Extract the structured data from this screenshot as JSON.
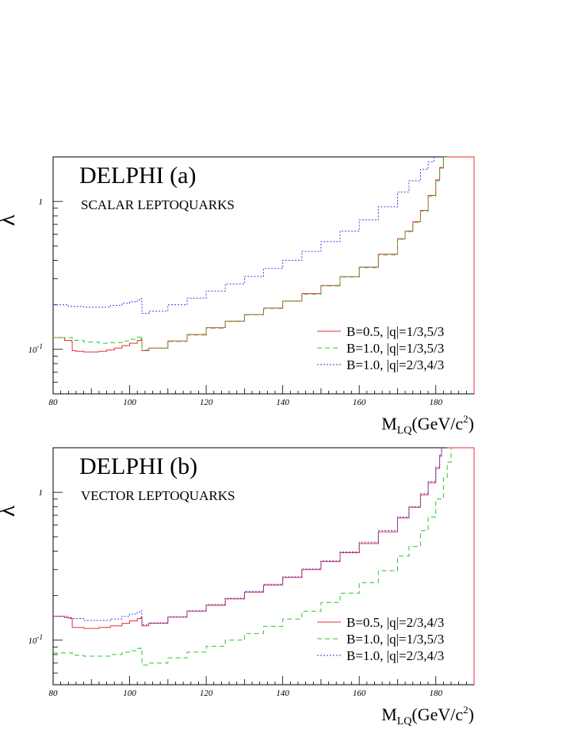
{
  "colors": {
    "red": "#e8303a",
    "green": "#2ec82e",
    "blue": "#3e3ef0"
  },
  "chart_data": [
    {
      "type": "line",
      "title": "DELPHI   (a)",
      "subtitle": "SCALAR LEPTOQUARKS",
      "ylabel": "λ",
      "xlabel": "M",
      "xlabel_sub": "LQ",
      "xlabel_unit": "(GeV/c",
      "xlabel_sup": "2",
      "xlabel_close": ")",
      "xlim": [
        80,
        190
      ],
      "ylim": [
        0.05,
        2.0
      ],
      "yscale": "log",
      "x_ticks": [
        "80",
        "100",
        "120",
        "140",
        "160",
        "180"
      ],
      "y_ticks": [
        {
          "value": 1,
          "label": "1"
        },
        {
          "value": 0.1,
          "label": "10",
          "sup": "-1"
        }
      ],
      "legend_position": "bottom-right",
      "series": [
        {
          "name": "B=0.5, |q|=1/3,5/3",
          "color": "red",
          "dash": "none",
          "x": [
            80,
            83,
            84.8,
            85,
            86,
            88,
            90,
            92,
            94,
            96,
            98,
            100,
            102,
            103,
            103.2,
            105,
            110,
            115,
            120,
            125,
            130,
            135,
            140,
            145,
            150,
            155,
            160,
            165,
            170,
            172,
            174,
            176,
            178,
            180,
            181,
            182,
            183
          ],
          "y": [
            0.12,
            0.115,
            0.113,
            0.098,
            0.097,
            0.096,
            0.096,
            0.097,
            0.099,
            0.102,
            0.106,
            0.11,
            0.115,
            0.118,
            0.098,
            0.102,
            0.114,
            0.126,
            0.14,
            0.155,
            0.172,
            0.19,
            0.212,
            0.238,
            0.27,
            0.31,
            0.36,
            0.44,
            0.56,
            0.63,
            0.73,
            0.87,
            1.1,
            1.4,
            1.7,
            2.0,
            2.0
          ]
        },
        {
          "name": "B=1.0, |q|=1/3,5/3",
          "color": "green",
          "dash": "6 4",
          "x": [
            80,
            85,
            88,
            92,
            95,
            98,
            100,
            102,
            103,
            103.2,
            105,
            110,
            115,
            120,
            125,
            130,
            135,
            140,
            145,
            150,
            155,
            160,
            165,
            170,
            172,
            174,
            176,
            178,
            180,
            181,
            182,
            183
          ],
          "y": [
            0.12,
            0.115,
            0.112,
            0.11,
            0.111,
            0.114,
            0.117,
            0.121,
            0.123,
            0.099,
            0.102,
            0.113,
            0.125,
            0.139,
            0.154,
            0.171,
            0.189,
            0.211,
            0.236,
            0.268,
            0.308,
            0.357,
            0.435,
            0.555,
            0.625,
            0.72,
            0.86,
            1.08,
            1.38,
            1.68,
            2.0,
            2.0
          ]
        },
        {
          "name": "B=1.0, |q|=2/3,4/3",
          "color": "blue",
          "dash": "2 2",
          "x": [
            80,
            84,
            88,
            92,
            95,
            98,
            100,
            102,
            103,
            103.2,
            105,
            110,
            115,
            120,
            125,
            130,
            135,
            140,
            145,
            150,
            155,
            160,
            165,
            170,
            173,
            176,
            178,
            179.5
          ],
          "y": [
            0.2,
            0.195,
            0.193,
            0.193,
            0.198,
            0.205,
            0.21,
            0.216,
            0.22,
            0.175,
            0.181,
            0.2,
            0.222,
            0.248,
            0.277,
            0.311,
            0.352,
            0.4,
            0.46,
            0.535,
            0.63,
            0.75,
            0.92,
            1.16,
            1.38,
            1.65,
            1.85,
            2.0
          ]
        }
      ]
    },
    {
      "type": "line",
      "title": "DELPHI   (b)",
      "subtitle": "VECTOR LEPTOQUARKS",
      "ylabel": "λ",
      "xlabel": "M",
      "xlabel_sub": "LQ",
      "xlabel_unit": "(GeV/c",
      "xlabel_sup": "2",
      "xlabel_close": ")",
      "xlim": [
        80,
        190
      ],
      "ylim": [
        0.05,
        2.0
      ],
      "yscale": "log",
      "x_ticks": [
        "80",
        "100",
        "120",
        "140",
        "160",
        "180"
      ],
      "y_ticks": [
        {
          "value": 1,
          "label": "1"
        },
        {
          "value": 0.1,
          "label": "10",
          "sup": "-1"
        }
      ],
      "legend_position": "bottom-right",
      "series": [
        {
          "name": "B=0.5, |q|=2/3,4/3",
          "color": "red",
          "dash": "none",
          "x": [
            80,
            83,
            84.8,
            85,
            88,
            90,
            92,
            95,
            98,
            100,
            102,
            103,
            103.2,
            105,
            110,
            115,
            120,
            125,
            130,
            135,
            140,
            145,
            150,
            155,
            160,
            165,
            170,
            173,
            176,
            178,
            180,
            181,
            181.5
          ],
          "y": [
            0.145,
            0.142,
            0.14,
            0.122,
            0.12,
            0.12,
            0.122,
            0.125,
            0.13,
            0.135,
            0.14,
            0.143,
            0.125,
            0.13,
            0.143,
            0.157,
            0.172,
            0.19,
            0.211,
            0.236,
            0.265,
            0.3,
            0.34,
            0.39,
            0.45,
            0.54,
            0.67,
            0.79,
            0.96,
            1.16,
            1.45,
            1.75,
            2.0
          ]
        },
        {
          "name": "B=1.0, |q|=1/3,5/3",
          "color": "green",
          "dash": "6 4",
          "x": [
            80,
            85,
            88,
            92,
            95,
            98,
            100,
            102,
            103,
            103.2,
            105,
            110,
            115,
            120,
            125,
            130,
            135,
            140,
            145,
            150,
            155,
            160,
            165,
            170,
            173,
            176,
            178,
            180,
            182,
            183,
            184
          ],
          "y": [
            0.082,
            0.079,
            0.078,
            0.078,
            0.08,
            0.083,
            0.085,
            0.088,
            0.089,
            0.068,
            0.07,
            0.076,
            0.083,
            0.091,
            0.1,
            0.111,
            0.124,
            0.139,
            0.157,
            0.18,
            0.208,
            0.245,
            0.295,
            0.37,
            0.43,
            0.55,
            0.68,
            0.9,
            1.25,
            1.6,
            2.0
          ]
        },
        {
          "name": "B=1.0, |q|=2/3,4/3",
          "color": "blue",
          "dash": "2 2",
          "x": [
            80,
            84,
            88,
            92,
            95,
            98,
            100,
            102,
            103,
            103.2,
            105,
            110,
            115,
            120,
            125,
            130,
            135,
            140,
            145,
            150,
            155,
            160,
            165,
            170,
            173,
            176,
            178,
            180,
            181,
            181.5
          ],
          "y": [
            0.145,
            0.14,
            0.136,
            0.136,
            0.139,
            0.145,
            0.15,
            0.155,
            0.158,
            0.127,
            0.131,
            0.144,
            0.158,
            0.174,
            0.192,
            0.214,
            0.239,
            0.268,
            0.303,
            0.344,
            0.395,
            0.46,
            0.55,
            0.68,
            0.8,
            0.98,
            1.18,
            1.48,
            1.78,
            2.0
          ]
        }
      ]
    }
  ]
}
